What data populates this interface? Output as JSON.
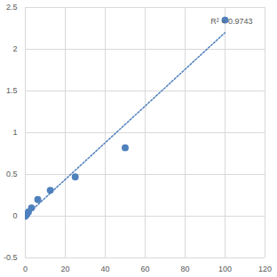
{
  "chart_data": {
    "type": "scatter",
    "annotations": [
      "R² = 0.9743"
    ],
    "series": [
      {
        "type": "scatter",
        "marker": "circle",
        "color": "#4f81bd",
        "x": [
          0,
          0.78,
          1.56,
          3.125,
          6.25,
          12.5,
          25,
          50,
          100
        ],
        "values": [
          0,
          0.02,
          0.05,
          0.1,
          0.2,
          0.31,
          0.47,
          0.82,
          2.35
        ]
      },
      {
        "type": "line",
        "line_style": "dotted",
        "color": "#4f81bd",
        "x": [
          0,
          100
        ],
        "values": [
          0.0,
          2.2
        ]
      }
    ],
    "xlim": [
      0,
      120
    ],
    "xticks": [
      0,
      20,
      40,
      60,
      80,
      100,
      120
    ],
    "ylim": [
      -0.5,
      2.5
    ],
    "yticks": [
      -0.5,
      0,
      0.5,
      1,
      1.5,
      2,
      2.5
    ],
    "grid": true
  }
}
